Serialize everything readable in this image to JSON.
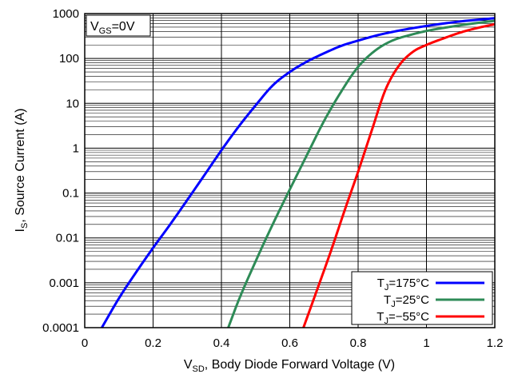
{
  "chart_data": {
    "type": "line",
    "title": "",
    "annotation": {
      "main": "V",
      "sub": "GS",
      "rest": "=0V"
    },
    "xlabel": {
      "main": "V",
      "sub": "SD",
      "rest": ", Body Diode Forward Voltage (V)"
    },
    "ylabel": {
      "main": "I",
      "sub": "S",
      "rest": ", Source Current (A)"
    },
    "xlim": [
      0,
      1.2
    ],
    "ylim": [
      0.0001,
      1000
    ],
    "yscale": "log",
    "grid": true,
    "legend_position": "bottom-right",
    "x_ticks": [
      "0",
      "0.2",
      "0.4",
      "0.6",
      "0.8",
      "1",
      "1.2"
    ],
    "y_ticks": [
      "0.0001",
      "0.001",
      "0.01",
      "0.1",
      "1",
      "10",
      "100",
      "1000"
    ],
    "series": [
      {
        "name": {
          "main": "T",
          "sub": "J",
          "rest": "=175°C"
        },
        "color": "#0000ff",
        "points": [
          [
            0.05,
            0.0001
          ],
          [
            0.1,
            0.00045
          ],
          [
            0.15,
            0.0017
          ],
          [
            0.2,
            0.006
          ],
          [
            0.25,
            0.02
          ],
          [
            0.3,
            0.07
          ],
          [
            0.35,
            0.25
          ],
          [
            0.4,
            0.9
          ],
          [
            0.45,
            3
          ],
          [
            0.5,
            9
          ],
          [
            0.55,
            25
          ],
          [
            0.6,
            50
          ],
          [
            0.65,
            85
          ],
          [
            0.7,
            130
          ],
          [
            0.75,
            190
          ],
          [
            0.8,
            250
          ],
          [
            0.85,
            320
          ],
          [
            0.9,
            390
          ],
          [
            0.95,
            460
          ],
          [
            1.0,
            530
          ],
          [
            1.05,
            600
          ],
          [
            1.1,
            670
          ],
          [
            1.15,
            730
          ],
          [
            1.2,
            790
          ]
        ]
      },
      {
        "name": {
          "main": "T",
          "sub": "J",
          "rest": "=25°C"
        },
        "color": "#2e8b57",
        "points": [
          [
            0.42,
            0.0001
          ],
          [
            0.45,
            0.0004
          ],
          [
            0.5,
            0.003
          ],
          [
            0.55,
            0.02
          ],
          [
            0.6,
            0.12
          ],
          [
            0.65,
            0.7
          ],
          [
            0.7,
            4
          ],
          [
            0.75,
            18
          ],
          [
            0.8,
            65
          ],
          [
            0.85,
            150
          ],
          [
            0.9,
            250
          ],
          [
            0.95,
            330
          ],
          [
            1.0,
            410
          ],
          [
            1.05,
            480
          ],
          [
            1.1,
            550
          ],
          [
            1.15,
            620
          ],
          [
            1.2,
            690
          ]
        ]
      },
      {
        "name": {
          "main": "T",
          "sub": "J",
          "rest": "=−55°C"
        },
        "color": "#ff0000",
        "points": [
          [
            0.64,
            0.0001
          ],
          [
            0.68,
            0.0007
          ],
          [
            0.72,
            0.005
          ],
          [
            0.76,
            0.04
          ],
          [
            0.8,
            0.3
          ],
          [
            0.84,
            2.5
          ],
          [
            0.88,
            20
          ],
          [
            0.92,
            70
          ],
          [
            0.96,
            140
          ],
          [
            1.0,
            200
          ],
          [
            1.05,
            280
          ],
          [
            1.1,
            380
          ],
          [
            1.15,
            480
          ],
          [
            1.2,
            580
          ]
        ]
      }
    ]
  }
}
